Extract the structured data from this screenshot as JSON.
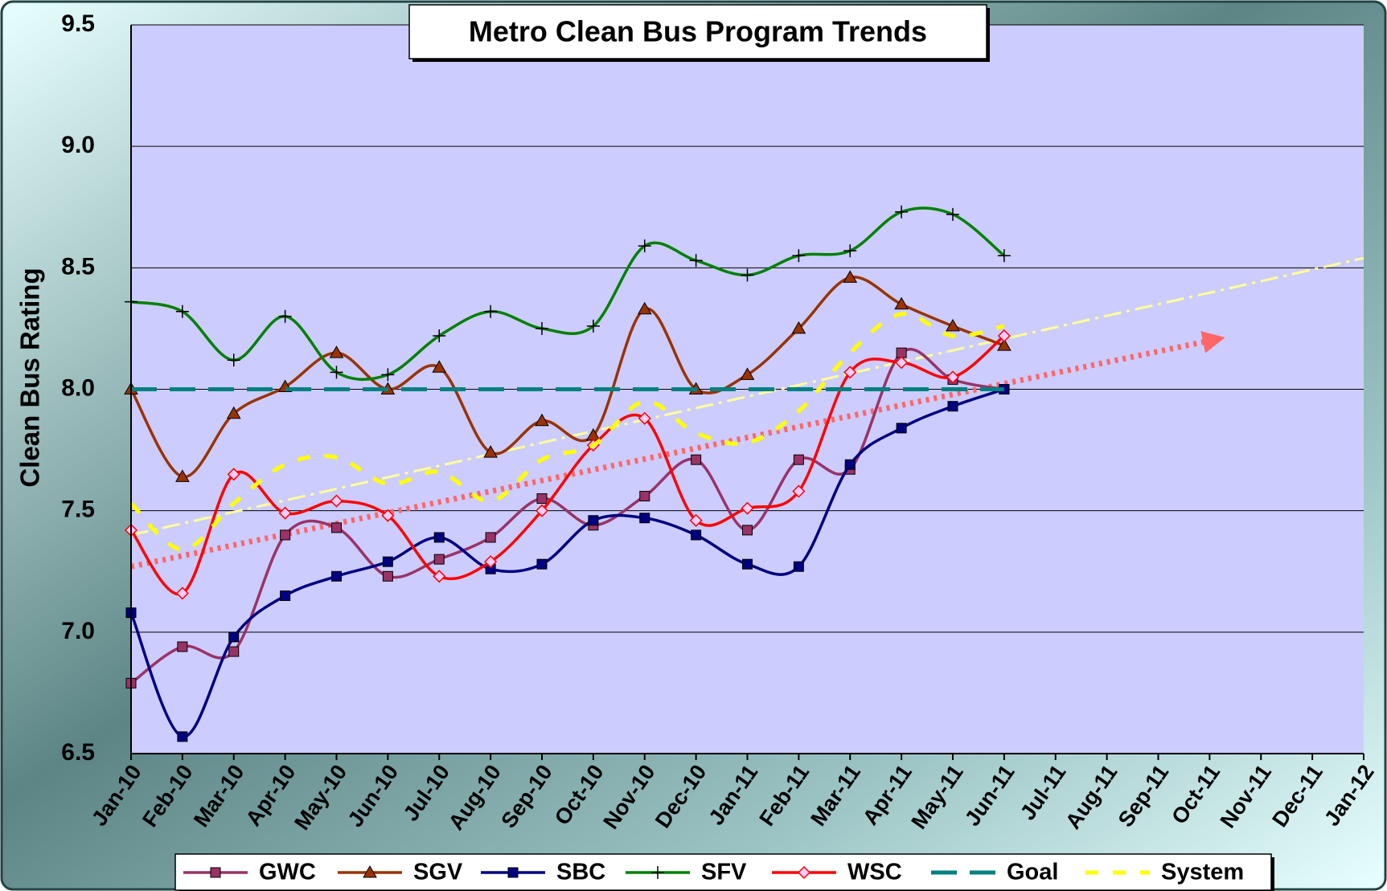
{
  "chart_data": {
    "type": "line",
    "title": "Metro Clean Bus Program Trends",
    "y_label": "Clean Bus Rating",
    "categories": [
      "Jan-10",
      "Feb-10",
      "Mar-10",
      "Apr-10",
      "May-10",
      "Jun-10",
      "Jul-10",
      "Aug-10",
      "Sep-10",
      "Oct-10",
      "Nov-10",
      "Dec-10",
      "Jan-11",
      "Feb-11",
      "Mar-11",
      "Apr-11",
      "May-11",
      "Jun-11",
      "Jul-11",
      "Aug-11",
      "Sep-11",
      "Oct-11",
      "Nov-11",
      "Dec-11",
      "Jan-12"
    ],
    "ylim": [
      6.5,
      9.5
    ],
    "yticks": [
      6.5,
      {
        "value": 7,
        "label": "7.0"
      },
      7.5,
      {
        "value": 8,
        "label": "8.0"
      },
      8.5,
      {
        "value": 9,
        "label": "9.0"
      },
      9.5
    ],
    "grid": true,
    "smooth": true,
    "legend": "bottom",
    "series": [
      {
        "name": "GWC",
        "color": "#993366",
        "marker": "square",
        "values": [
          6.79,
          6.94,
          6.92,
          7.4,
          7.43,
          7.23,
          7.3,
          7.39,
          7.55,
          7.44,
          7.56,
          7.71,
          7.42,
          7.71,
          7.67,
          8.15,
          8.04,
          8.0,
          null,
          null,
          null,
          null,
          null,
          null,
          null
        ]
      },
      {
        "name": "SGV",
        "color": "#993300",
        "marker": "triangle",
        "values": [
          8.0,
          7.64,
          7.9,
          8.01,
          8.15,
          8.0,
          8.09,
          7.74,
          7.87,
          7.81,
          8.33,
          8.0,
          8.06,
          8.25,
          8.46,
          8.35,
          8.26,
          8.18,
          null,
          null,
          null,
          null,
          null,
          null,
          null
        ]
      },
      {
        "name": "SBC",
        "color": "#000080",
        "marker": "square",
        "values": [
          7.08,
          6.57,
          6.98,
          7.15,
          7.23,
          7.29,
          7.39,
          7.26,
          7.28,
          7.46,
          7.47,
          7.4,
          7.28,
          7.27,
          7.69,
          7.84,
          7.93,
          8.0,
          null,
          null,
          null,
          null,
          null,
          null,
          null
        ]
      },
      {
        "name": "SFV",
        "color": "#008000",
        "marker": "plus",
        "values": [
          8.36,
          8.32,
          8.12,
          8.3,
          8.07,
          8.06,
          8.22,
          8.32,
          8.25,
          8.26,
          8.59,
          8.53,
          8.47,
          8.55,
          8.57,
          8.73,
          8.72,
          8.55,
          null,
          null,
          null,
          null,
          null,
          null,
          null
        ]
      },
      {
        "name": "WSC",
        "color": "#ff0000",
        "marker": "diamond",
        "values": [
          7.42,
          7.16,
          7.65,
          7.49,
          7.54,
          7.48,
          7.23,
          7.29,
          7.5,
          7.77,
          7.88,
          7.46,
          7.51,
          7.58,
          8.07,
          8.11,
          8.05,
          8.22,
          null,
          null,
          null,
          null,
          null,
          null,
          null
        ]
      },
      {
        "name": "Goal",
        "color": "#008080",
        "dash": "32,16",
        "values": [
          8,
          8,
          8,
          8,
          8,
          8,
          8,
          8,
          8,
          8,
          8,
          8,
          8,
          8,
          8,
          8,
          8,
          8,
          null,
          null,
          null,
          null,
          null,
          null,
          null
        ]
      },
      {
        "name": "System",
        "color": "#ffff00",
        "dash": "16,18",
        "values": [
          7.53,
          7.34,
          7.53,
          7.69,
          7.72,
          7.61,
          7.66,
          7.54,
          7.71,
          7.77,
          7.95,
          7.82,
          7.78,
          7.91,
          8.15,
          8.31,
          8.22,
          8.26,
          null,
          null,
          null,
          null,
          null,
          null,
          null
        ]
      }
    ],
    "trends": [
      {
        "color": "#ffff99",
        "dash": "22,7,4,7",
        "from": "Jan-10",
        "to": "Jan-12",
        "values": [
          7.4,
          8.54
        ]
      },
      {
        "color": "#ff6666",
        "dash": "4,6",
        "arrow": true,
        "from": "Jan-10",
        "to": "Oct-11",
        "values": [
          7.27,
          8.2
        ]
      }
    ]
  }
}
